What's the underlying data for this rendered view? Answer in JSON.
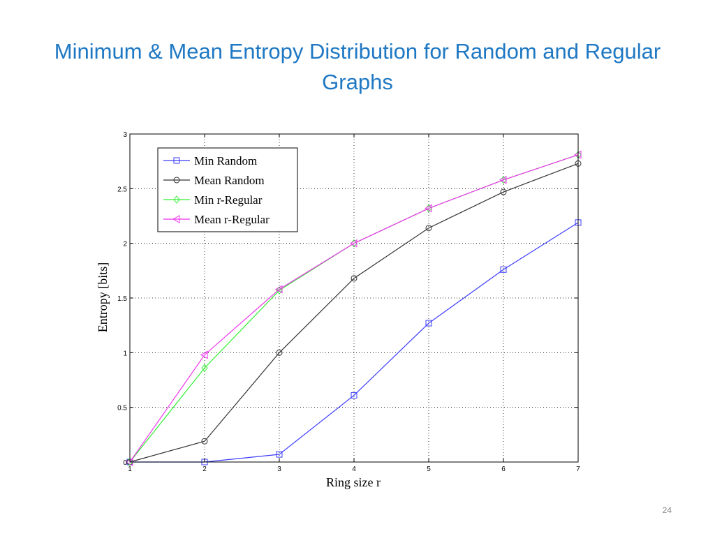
{
  "slide": {
    "title": "Minimum & Mean Entropy Distribution for Random and Regular Graphs",
    "page_number": "24"
  },
  "chart_data": {
    "type": "line",
    "x": [
      1,
      2,
      3,
      4,
      5,
      6,
      7
    ],
    "xlabel": "Ring size r",
    "ylabel": "Entropy [bits]",
    "xlim": [
      1,
      7
    ],
    "ylim": [
      0,
      3
    ],
    "xticks": [
      "1",
      "2",
      "3",
      "4",
      "5",
      "6",
      "7"
    ],
    "yticks": [
      "0",
      "0.5",
      "1",
      "1.5",
      "2",
      "2.5",
      "3"
    ],
    "grid": true,
    "legend_position": "top-left",
    "series": [
      {
        "name": "Min Random",
        "color": "#3b3bff",
        "marker": "square",
        "values": [
          0,
          0,
          0.07,
          0.61,
          1.27,
          1.76,
          2.19
        ]
      },
      {
        "name": "Mean Random",
        "color": "#333333",
        "marker": "circle",
        "values": [
          0,
          0.19,
          1.0,
          1.68,
          2.14,
          2.47,
          2.73
        ]
      },
      {
        "name": "Min r-Regular",
        "color": "#33ee33",
        "marker": "diamond",
        "values": [
          0,
          0.86,
          1.57,
          2.0,
          2.32,
          2.58,
          2.81
        ]
      },
      {
        "name": "Mean r-Regular",
        "color": "#ee33ee",
        "marker": "triangle-left",
        "values": [
          0,
          0.98,
          1.58,
          2.0,
          2.32,
          2.58,
          2.81
        ]
      }
    ]
  }
}
